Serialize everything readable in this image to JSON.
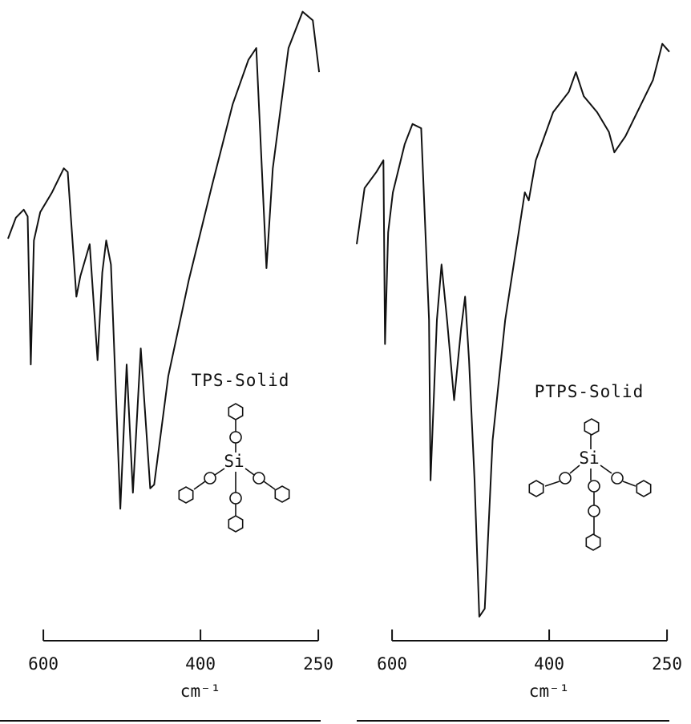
{
  "chart_data": [
    {
      "type": "line",
      "annotation": "TPS-Solid",
      "structure_label": "Si",
      "x_label": "cm⁻¹",
      "xlim": [
        645,
        245
      ],
      "ylim": [
        0,
        100
      ],
      "xticks": [
        600,
        400,
        250
      ],
      "color": "#111111",
      "x": [
        645,
        635,
        625,
        620,
        616,
        612,
        604,
        589,
        574,
        569,
        558,
        553,
        541,
        531,
        525,
        520,
        514,
        502,
        494,
        486,
        476,
        464,
        459,
        441,
        415,
        385,
        359,
        339,
        329,
        316,
        308,
        288,
        270,
        257,
        249
      ],
      "values": [
        62.6,
        66,
        67.3,
        66.2,
        42.2,
        62.3,
        66.9,
        70.1,
        74,
        73.4,
        53.2,
        56.5,
        61.7,
        42.9,
        57.1,
        62.3,
        58.4,
        18.8,
        42.2,
        21.4,
        44.8,
        22.1,
        22.7,
        40.3,
        55.8,
        71.4,
        84.4,
        91.6,
        93.5,
        57.8,
        74,
        93.5,
        99.4,
        98,
        89.6
      ]
    },
    {
      "type": "line",
      "annotation": "PTPS-Solid",
      "structure_label": "Si",
      "x_label": "cm⁻¹",
      "xlim": [
        645,
        245
      ],
      "ylim": [
        0,
        100
      ],
      "xticks": [
        600,
        400,
        250
      ],
      "color": "#111111",
      "x": [
        645,
        635,
        620,
        611,
        609,
        605,
        599,
        584,
        574,
        563,
        553,
        551,
        543,
        537,
        530,
        521,
        512,
        507,
        502,
        495,
        489,
        482,
        472,
        456,
        431,
        426,
        417,
        395,
        375,
        366,
        356,
        339,
        324,
        317,
        303,
        283,
        268,
        256,
        247
      ],
      "values": [
        61.7,
        70.8,
        73.4,
        75.3,
        45.5,
        63.6,
        70.1,
        77.9,
        81.2,
        80.5,
        49.4,
        23.4,
        49.4,
        58.4,
        49.4,
        36.4,
        48.1,
        53.2,
        42.9,
        23.4,
        1.3,
        2.6,
        29.9,
        49.4,
        70.1,
        68.8,
        75.3,
        83.1,
        86.4,
        89.6,
        85.7,
        83.1,
        79.9,
        76.6,
        79.2,
        84.4,
        88.3,
        94.2,
        92.9
      ]
    }
  ]
}
